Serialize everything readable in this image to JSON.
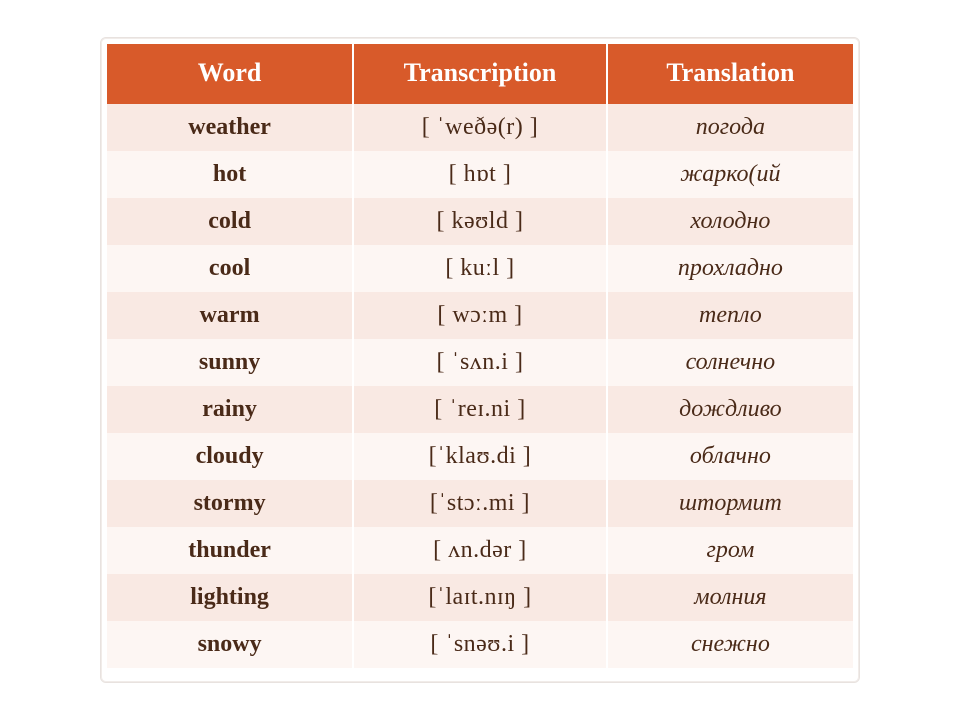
{
  "table": {
    "headers": {
      "word": "Word",
      "transcription": "Transcription",
      "translation": "Translation"
    },
    "header_bg": "#d85a2a",
    "header_fg": "#ffffff",
    "row_odd_bg": "#f9e9e3",
    "row_even_bg": "#fdf6f3",
    "text_color": "#4a2a18",
    "font_size_header": 26,
    "font_size_cell": 24,
    "rows": [
      {
        "word": "weather",
        "ipa": "[ ˈweðə(r) ]",
        "translation": "погода"
      },
      {
        "word": "hot",
        "ipa": "[ hɒt ]",
        "translation": "жарко(ий"
      },
      {
        "word": "cold",
        "ipa": "[ kəʊld ]",
        "translation": "холодно"
      },
      {
        "word": "cool",
        "ipa": "[ kuːl ]",
        "translation": "прохладно"
      },
      {
        "word": "warm",
        "ipa": "[ wɔːm ]",
        "translation": "тепло"
      },
      {
        "word": "sunny",
        "ipa": "[ ˈsʌn.i ]",
        "translation": "солнечно"
      },
      {
        "word": "rainy",
        "ipa": "[ ˈreɪ.ni ]",
        "translation": "дождливо"
      },
      {
        "word": "cloudy",
        "ipa": "[ˈklaʊ.di ]",
        "translation": "облачно"
      },
      {
        "word": "stormy",
        "ipa": "[ˈstɔː.mi ]",
        "translation": "штормит"
      },
      {
        "word": "thunder",
        "ipa": "[   ʌn.dər ]",
        "translation": "гром"
      },
      {
        "word": "lighting",
        "ipa": "[ˈlaɪt.nɪŋ ]",
        "translation": "молния"
      },
      {
        "word": "snowy",
        "ipa": "[ ˈsnəʊ.i ]",
        "translation": "снежно"
      }
    ]
  }
}
